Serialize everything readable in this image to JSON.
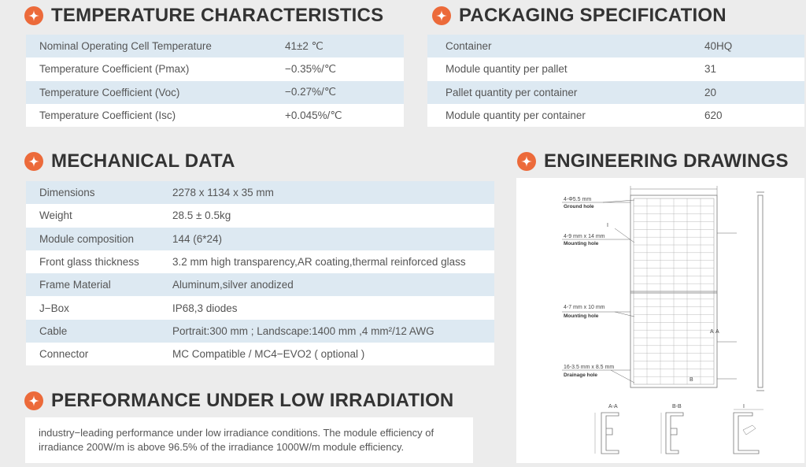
{
  "sections": {
    "temperature": {
      "title": "TEMPERATURE CHARACTERISTICS"
    },
    "packaging": {
      "title": "PACKAGING SPECIFICATION"
    },
    "mechanical": {
      "title": "MECHANICAL DATA"
    },
    "engineering": {
      "title": "ENGINEERING DRAWINGS"
    },
    "performance": {
      "title": "PERFORMANCE UNDER LOW IRRADIATION"
    }
  },
  "temperature_rows": [
    {
      "label": "Nominal Operating Cell Temperature",
      "value": "41±2 ℃"
    },
    {
      "label": "Temperature Coefficient (Pmax)",
      "value": "−0.35%/℃"
    },
    {
      "label": "Temperature Coefficient (Voc)",
      "value": "−0.27%/℃"
    },
    {
      "label": "Temperature Coefficient (Isc)",
      "value": "+0.045%/℃"
    }
  ],
  "packaging_rows": [
    {
      "label": "Container",
      "value": "40HQ"
    },
    {
      "label": "Module quantity per pallet",
      "value": "31"
    },
    {
      "label": "Pallet quantity per container",
      "value": "20"
    },
    {
      "label": "Module quantity per container",
      "value": "620"
    }
  ],
  "mechanical_rows": [
    {
      "label": "Dimensions",
      "value": "2278 x 1134 x 35 mm"
    },
    {
      "label": "Weight",
      "value": "28.5 ± 0.5kg"
    },
    {
      "label": "Module composition",
      "value": "144 (6*24)"
    },
    {
      "label": "Front glass thickness",
      "value": "3.2 mm high transparency,AR coating,thermal reinforced glass"
    },
    {
      "label": "Frame Material",
      "value": "Aluminum,silver anodized"
    },
    {
      "label": "J−Box",
      "value": "IP68,3 diodes"
    },
    {
      "label": "Cable",
      "value": "Portrait:300 mm ; Landscape:1400 mm ,4 mm²/12 AWG"
    },
    {
      "label": "Connector",
      "value": "MC Compatible / MC4−EVO2 ( optional )"
    }
  ],
  "performance_text": "industry−leading performance under low irradiance conditions. The module efficiency of irradiance 200W/m is above 96.5% of the irradiance 1000W/m module efficiency.",
  "drawing": {
    "ground_hole_dim": "4-Φ5.5 mm",
    "ground_hole_label": "Ground hole",
    "mounting_hole_1_dim": "4-9 mm x 14 mm",
    "mounting_hole_1_label": "Mounting hole",
    "mounting_hole_2_dim": "4-7 mm x 10 mm",
    "mounting_hole_2_label": "Mounting hole",
    "drainage_hole_dim": "16-3.5 mm x 8.5 mm",
    "drainage_hole_label": "Drainage hole",
    "marker_i": "I",
    "marker_a": "A",
    "marker_b": "B",
    "section_aa": "A-A",
    "section_bb": "B-B",
    "section_i": "I"
  },
  "colors": {
    "accent": "#ec6a3a",
    "row_shade": "#dde9f2",
    "background": "#ececec"
  },
  "icons": {
    "section_badge": "sparkle-icon"
  }
}
